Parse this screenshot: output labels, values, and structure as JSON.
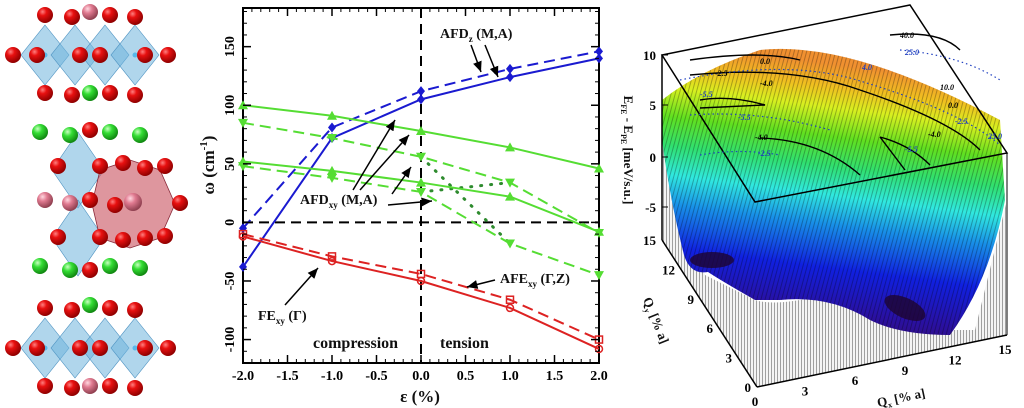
{
  "structures": {
    "panels": [
      "top-layered",
      "middle-with-polyhedron",
      "bottom-layered"
    ],
    "colors": {
      "oxygen": "#e01010",
      "a_site_green": "#33dd33",
      "a_site_pink": "#e07a90",
      "octahedron": "#6fb4dc",
      "polyhedron": "#c8505e",
      "b_site": "#5ab7e8"
    }
  },
  "chart_data": [
    {
      "type": "line",
      "xlabel": "ε (%)",
      "ylabel": "ω (cm",
      "ylabel_sup": "-1",
      "ylabel_close": ")",
      "xlim": [
        -2.0,
        2.0
      ],
      "ylim": [
        -120,
        183
      ],
      "x_ticks": [
        "-2.0",
        "-1.5",
        "-1.0",
        "-0.5",
        "0.0",
        "0.5",
        "1.0",
        "1.5",
        "2.0"
      ],
      "x_tick_values": [
        -2.0,
        -1.5,
        -1.0,
        -0.5,
        0.0,
        0.5,
        1.0,
        1.5,
        2.0
      ],
      "y_ticks": [
        "-100",
        "-50",
        "0",
        "50",
        "100",
        "150"
      ],
      "y_tick_values": [
        -100,
        -50,
        0,
        50,
        100,
        150
      ],
      "x": [
        -2.0,
        -1.0,
        0.0,
        1.0,
        2.0
      ],
      "series": [
        {
          "values": [
            -38,
            72,
            105,
            124,
            140
          ],
          "color": "#1a1ad0",
          "style": "solid",
          "marker": "diamond"
        },
        {
          "values": [
            -5,
            81,
            112,
            131,
            146
          ],
          "color": "#1a1ad0",
          "style": "dashed",
          "marker": "diamond"
        },
        {
          "values": [
            100,
            91,
            78,
            64,
            46
          ],
          "color": "#55dd33",
          "style": "solid",
          "marker": "triangle-up"
        },
        {
          "values": [
            85,
            72,
            56,
            34,
            -9
          ],
          "color": "#55dd33",
          "style": "dashed",
          "marker": "triangle-down"
        },
        {
          "values": [
            52,
            44,
            34,
            22,
            -8
          ],
          "color": "#55dd33",
          "style": "solid",
          "marker": "triangle-up"
        },
        {
          "values": [
            48,
            38,
            26,
            -18,
            -45
          ],
          "color": "#55dd33",
          "style": "dashed",
          "marker": "triangle-down"
        },
        {
          "values": [
            -12,
            -33,
            -50,
            -73,
            -108
          ],
          "color": "#dd2222",
          "style": "solid",
          "marker": "circle"
        },
        {
          "values": [
            -10,
            -29,
            -44,
            -66,
            -100
          ],
          "color": "#dd2222",
          "style": "dashed",
          "marker": "square"
        }
      ],
      "crossing_dotted": {
        "color": "#2e8b2e",
        "segments": [
          [
            [
              0.0,
              56
            ],
            [
              1.0,
              -18
            ]
          ],
          [
            [
              0.0,
              26
            ],
            [
              1.0,
              34
            ]
          ]
        ]
      },
      "reference_lines": {
        "vertical_x": 0.0,
        "horizontal_y": 0
      },
      "annotations": {
        "afd_z": {
          "main": "AFD",
          "sub": "z",
          "rest": " (M,A)"
        },
        "afd_xy": {
          "main": "AFD",
          "sub": "xy",
          "rest": " (M,A)"
        },
        "afe_xy": {
          "main": "AFE",
          "sub": "xy",
          "rest": " (Γ,Z)"
        },
        "fe_xy": {
          "main": "FE",
          "sub": "xy",
          "rest": " (Γ)"
        },
        "compression": "compression",
        "tension": "tension"
      }
    },
    {
      "type": "surface",
      "zlabel": {
        "a": "E",
        "a_sub": "FE",
        "mid": " - E",
        "b_sub": "PE",
        "rest": " [meV/s.u.]"
      },
      "ylabel": {
        "main": "Q",
        "sub": "y",
        "rest": " [% a]"
      },
      "xlabel": {
        "main": "Q",
        "sub": "x",
        "rest": " [% a]"
      },
      "z_ticks": [
        "10",
        "5",
        "0",
        "-5"
      ],
      "y_ticks": [
        "0",
        "3",
        "6",
        "9",
        "12",
        "15"
      ],
      "x_ticks": [
        "0",
        "3",
        "6",
        "9",
        "12",
        "15"
      ],
      "zlim": [
        -8,
        10
      ],
      "contour_labels": [
        "40.0",
        "25.0",
        "0.0",
        "-2.5",
        "-4.0",
        "-5.5",
        "-5.5",
        "-4.0",
        "-2.5",
        "4.0",
        "10.0",
        "0.0",
        "-2.5",
        "-4.0",
        "-5.5",
        "25.0"
      ],
      "colormap": [
        "#3a0a5a",
        "#2a10a0",
        "#1020e0",
        "#1890e8",
        "#30e8e0",
        "#30e070",
        "#60e020",
        "#d8f020",
        "#f0c020",
        "#f09030"
      ]
    }
  ]
}
